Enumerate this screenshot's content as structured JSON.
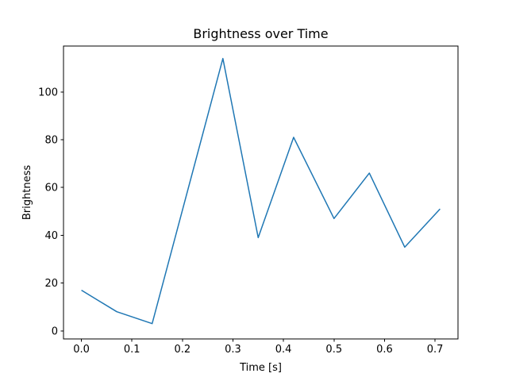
{
  "chart_data": {
    "type": "line",
    "title": "Brightness over Time",
    "xlabel": "Time [s]",
    "ylabel": "Brightness",
    "x": [
      0.0,
      0.07,
      0.14,
      0.28,
      0.35,
      0.42,
      0.5,
      0.57,
      0.64,
      0.71
    ],
    "y": [
      17,
      8,
      3,
      114,
      39,
      81,
      47,
      66,
      35,
      51
    ],
    "series_name": "Brightness",
    "line_color": "#1f77b4",
    "line_width": 1.5,
    "xlim": [
      -0.0355,
      0.7455
    ],
    "ylim": [
      -3.4,
      119.2
    ],
    "x_ticks": [
      0.0,
      0.1,
      0.2,
      0.3,
      0.4,
      0.5,
      0.6,
      0.7
    ],
    "x_tick_labels": [
      "0.0",
      "0.1",
      "0.2",
      "0.3",
      "0.4",
      "0.5",
      "0.6",
      "0.7"
    ],
    "y_ticks": [
      0,
      20,
      40,
      60,
      80,
      100
    ],
    "y_tick_labels": [
      "0",
      "20",
      "40",
      "60",
      "80",
      "100"
    ],
    "grid": false,
    "legend": "none",
    "background_color": "#ffffff",
    "spine_color": "#000000",
    "text_color": "#000000"
  }
}
